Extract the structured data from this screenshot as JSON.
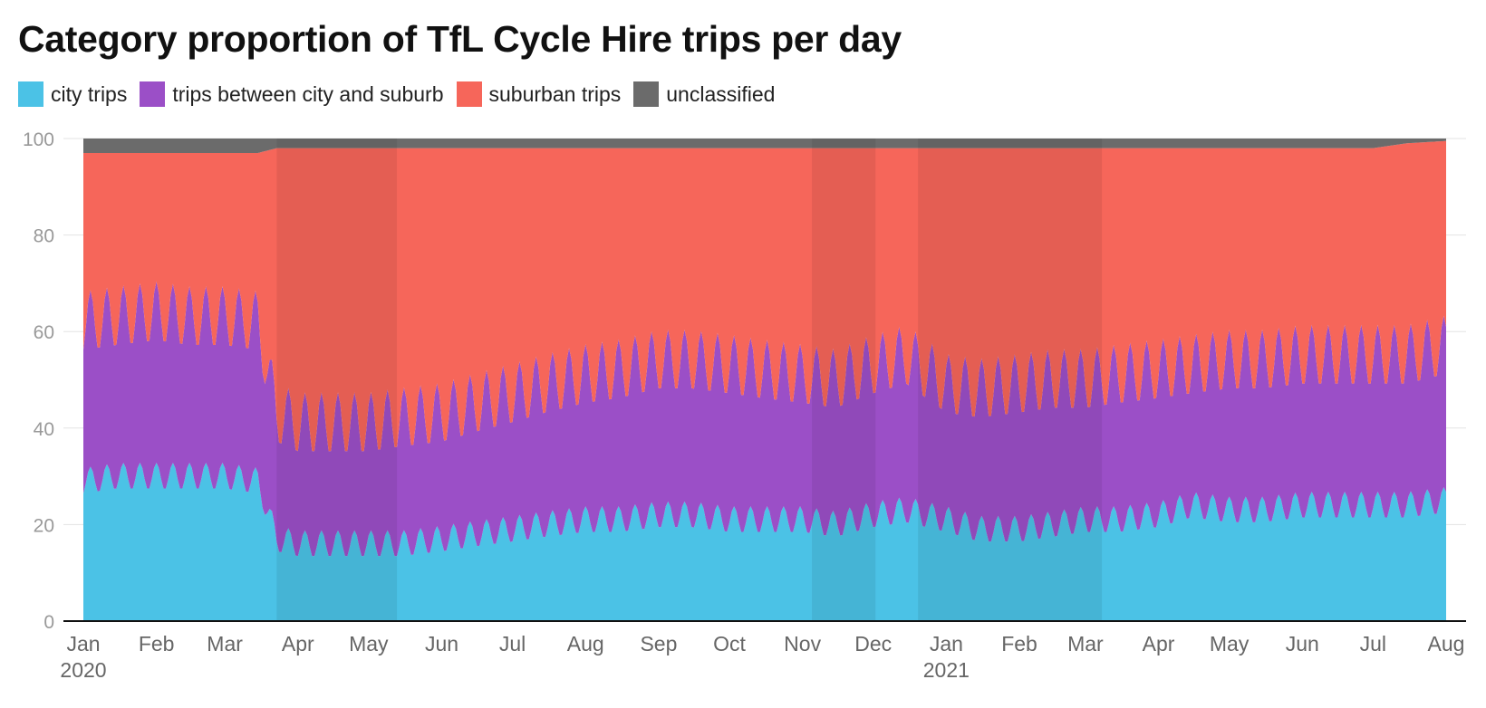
{
  "chart_data": {
    "type": "area",
    "stacked": true,
    "title": "Category proportion of TfL Cycle Hire trips per day",
    "xlabel": "",
    "ylabel": "",
    "ylim": [
      0,
      100
    ],
    "yticks": [
      0,
      20,
      40,
      60,
      80,
      100
    ],
    "xlim": [
      "2020-01-01",
      "2021-08-01"
    ],
    "xticks": [
      {
        "date": "2020-01-01",
        "label": "Jan",
        "sublabel": "2020"
      },
      {
        "date": "2020-02-01",
        "label": "Feb"
      },
      {
        "date": "2020-03-01",
        "label": "Mar"
      },
      {
        "date": "2020-04-01",
        "label": "Apr"
      },
      {
        "date": "2020-05-01",
        "label": "May"
      },
      {
        "date": "2020-06-01",
        "label": "Jun"
      },
      {
        "date": "2020-07-01",
        "label": "Jul"
      },
      {
        "date": "2020-08-01",
        "label": "Aug"
      },
      {
        "date": "2020-09-01",
        "label": "Sep"
      },
      {
        "date": "2020-10-01",
        "label": "Oct"
      },
      {
        "date": "2020-11-01",
        "label": "Nov"
      },
      {
        "date": "2020-12-01",
        "label": "Dec"
      },
      {
        "date": "2021-01-01",
        "label": "Jan",
        "sublabel": "2021"
      },
      {
        "date": "2021-02-01",
        "label": "Feb"
      },
      {
        "date": "2021-03-01",
        "label": "Mar"
      },
      {
        "date": "2021-04-01",
        "label": "Apr"
      },
      {
        "date": "2021-05-01",
        "label": "May"
      },
      {
        "date": "2021-06-01",
        "label": "Jun"
      },
      {
        "date": "2021-07-01",
        "label": "Jul"
      },
      {
        "date": "2021-08-01",
        "label": "Aug"
      }
    ],
    "grid": true,
    "legend_position": "top-left",
    "shaded_periods": [
      {
        "start": "2020-03-23",
        "end": "2020-05-13"
      },
      {
        "start": "2020-11-05",
        "end": "2020-12-02"
      },
      {
        "start": "2020-12-20",
        "end": "2021-03-08"
      }
    ],
    "series": [
      {
        "name": "city trips",
        "color": "#4bc2e6",
        "points": [
          [
            "2020-01-01",
            29
          ],
          [
            "2020-01-15",
            30
          ],
          [
            "2020-02-01",
            30
          ],
          [
            "2020-02-15",
            30
          ],
          [
            "2020-03-01",
            30
          ],
          [
            "2020-03-15",
            29
          ],
          [
            "2020-03-23",
            17
          ],
          [
            "2020-04-01",
            16
          ],
          [
            "2020-04-15",
            16
          ],
          [
            "2020-05-01",
            16
          ],
          [
            "2020-05-15",
            16
          ],
          [
            "2020-06-01",
            17
          ],
          [
            "2020-06-15",
            18
          ],
          [
            "2020-07-01",
            19
          ],
          [
            "2020-07-15",
            20
          ],
          [
            "2020-08-01",
            21
          ],
          [
            "2020-08-15",
            21
          ],
          [
            "2020-09-01",
            22
          ],
          [
            "2020-09-15",
            22
          ],
          [
            "2020-10-01",
            21
          ],
          [
            "2020-10-15",
            21
          ],
          [
            "2020-11-01",
            21
          ],
          [
            "2020-11-15",
            20
          ],
          [
            "2020-12-01",
            22
          ],
          [
            "2020-12-15",
            23
          ],
          [
            "2021-01-01",
            21
          ],
          [
            "2021-01-15",
            19
          ],
          [
            "2021-02-01",
            19
          ],
          [
            "2021-02-15",
            20
          ],
          [
            "2021-03-01",
            21
          ],
          [
            "2021-03-15",
            21
          ],
          [
            "2021-04-01",
            22
          ],
          [
            "2021-04-15",
            24
          ],
          [
            "2021-05-01",
            23
          ],
          [
            "2021-05-15",
            23
          ],
          [
            "2021-06-01",
            24
          ],
          [
            "2021-06-15",
            24
          ],
          [
            "2021-07-01",
            24
          ],
          [
            "2021-07-15",
            24
          ],
          [
            "2021-08-01",
            25
          ]
        ]
      },
      {
        "name": "trips between city and suburb",
        "color": "#9b4fc7",
        "points": [
          [
            "2020-01-01",
            33
          ],
          [
            "2020-01-15",
            33
          ],
          [
            "2020-02-01",
            34
          ],
          [
            "2020-02-15",
            33
          ],
          [
            "2020-03-01",
            33
          ],
          [
            "2020-03-15",
            33
          ],
          [
            "2020-03-23",
            26
          ],
          [
            "2020-04-01",
            25
          ],
          [
            "2020-04-15",
            25
          ],
          [
            "2020-05-01",
            25
          ],
          [
            "2020-05-15",
            26
          ],
          [
            "2020-06-01",
            26
          ],
          [
            "2020-06-15",
            27
          ],
          [
            "2020-07-01",
            28
          ],
          [
            "2020-07-15",
            29
          ],
          [
            "2020-08-01",
            30
          ],
          [
            "2020-08-15",
            31
          ],
          [
            "2020-09-01",
            32
          ],
          [
            "2020-09-15",
            32
          ],
          [
            "2020-10-01",
            32
          ],
          [
            "2020-10-15",
            31
          ],
          [
            "2020-11-01",
            30
          ],
          [
            "2020-11-15",
            30
          ],
          [
            "2020-12-01",
            31
          ],
          [
            "2020-12-15",
            32
          ],
          [
            "2021-01-01",
            28
          ],
          [
            "2021-01-15",
            29
          ],
          [
            "2021-02-01",
            30
          ],
          [
            "2021-02-15",
            30
          ],
          [
            "2021-03-01",
            29
          ],
          [
            "2021-03-15",
            30
          ],
          [
            "2021-04-01",
            30
          ],
          [
            "2021-04-15",
            29
          ],
          [
            "2021-05-01",
            31
          ],
          [
            "2021-05-15",
            31
          ],
          [
            "2021-06-01",
            31
          ],
          [
            "2021-06-15",
            31
          ],
          [
            "2021-07-01",
            31
          ],
          [
            "2021-07-15",
            31
          ],
          [
            "2021-08-01",
            32
          ]
        ]
      },
      {
        "name": "suburban trips",
        "color": "#f6665a",
        "points": [
          [
            "2020-01-01",
            35
          ],
          [
            "2020-01-15",
            34
          ],
          [
            "2020-02-01",
            33
          ],
          [
            "2020-02-15",
            34
          ],
          [
            "2020-03-01",
            34
          ],
          [
            "2020-03-15",
            35
          ],
          [
            "2020-03-23",
            55
          ],
          [
            "2020-04-01",
            57
          ],
          [
            "2020-04-15",
            57
          ],
          [
            "2020-05-01",
            57
          ],
          [
            "2020-05-15",
            56
          ],
          [
            "2020-06-01",
            55
          ],
          [
            "2020-06-15",
            53
          ],
          [
            "2020-07-01",
            51
          ],
          [
            "2020-07-15",
            49
          ],
          [
            "2020-08-01",
            47
          ],
          [
            "2020-08-15",
            46
          ],
          [
            "2020-09-01",
            44
          ],
          [
            "2020-09-15",
            44
          ],
          [
            "2020-10-01",
            45
          ],
          [
            "2020-10-15",
            46
          ],
          [
            "2020-11-01",
            47
          ],
          [
            "2020-11-15",
            48
          ],
          [
            "2020-12-01",
            45
          ],
          [
            "2020-12-15",
            43
          ],
          [
            "2021-01-01",
            49
          ],
          [
            "2021-01-15",
            50
          ],
          [
            "2021-02-01",
            49
          ],
          [
            "2021-02-15",
            48
          ],
          [
            "2021-03-01",
            48
          ],
          [
            "2021-03-15",
            47
          ],
          [
            "2021-04-01",
            46
          ],
          [
            "2021-04-15",
            45
          ],
          [
            "2021-05-01",
            44
          ],
          [
            "2021-05-15",
            44
          ],
          [
            "2021-06-01",
            43
          ],
          [
            "2021-06-15",
            43
          ],
          [
            "2021-07-01",
            43
          ],
          [
            "2021-07-15",
            44
          ],
          [
            "2021-08-01",
            42.5
          ]
        ]
      },
      {
        "name": "unclassified",
        "color": "#6b6b6b",
        "points": [
          [
            "2020-01-01",
            3
          ],
          [
            "2020-01-15",
            3
          ],
          [
            "2020-02-01",
            3
          ],
          [
            "2020-02-15",
            3
          ],
          [
            "2020-03-01",
            3
          ],
          [
            "2020-03-15",
            3
          ],
          [
            "2020-03-23",
            2
          ],
          [
            "2020-04-01",
            2
          ],
          [
            "2020-04-15",
            2
          ],
          [
            "2020-05-01",
            2
          ],
          [
            "2020-05-15",
            2
          ],
          [
            "2020-06-01",
            2
          ],
          [
            "2020-06-15",
            2
          ],
          [
            "2020-07-01",
            2
          ],
          [
            "2020-07-15",
            2
          ],
          [
            "2020-08-01",
            2
          ],
          [
            "2020-08-15",
            2
          ],
          [
            "2020-09-01",
            2
          ],
          [
            "2020-09-15",
            2
          ],
          [
            "2020-10-01",
            2
          ],
          [
            "2020-10-15",
            2
          ],
          [
            "2020-11-01",
            2
          ],
          [
            "2020-11-15",
            2
          ],
          [
            "2020-12-01",
            2
          ],
          [
            "2020-12-15",
            2
          ],
          [
            "2021-01-01",
            2
          ],
          [
            "2021-01-15",
            2
          ],
          [
            "2021-02-01",
            2
          ],
          [
            "2021-02-15",
            2
          ],
          [
            "2021-03-01",
            2
          ],
          [
            "2021-03-15",
            2
          ],
          [
            "2021-04-01",
            2
          ],
          [
            "2021-04-15",
            2
          ],
          [
            "2021-05-01",
            2
          ],
          [
            "2021-05-15",
            2
          ],
          [
            "2021-06-01",
            2
          ],
          [
            "2021-06-15",
            2
          ],
          [
            "2021-07-01",
            2
          ],
          [
            "2021-07-15",
            1
          ],
          [
            "2021-08-01",
            0.5
          ]
        ]
      }
    ]
  }
}
